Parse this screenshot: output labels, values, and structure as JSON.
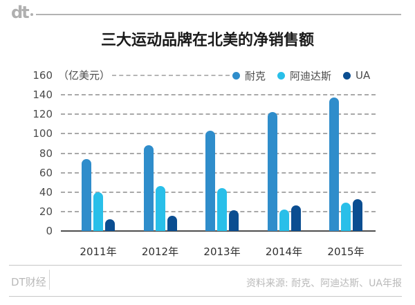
{
  "header": {
    "logo_text": "dt"
  },
  "title": "三大运动品牌在北美的净销售额",
  "chart_data": {
    "type": "bar",
    "title": "三大运动品牌在北美的净销售额",
    "unit_label": "（亿美元）",
    "categories": [
      "2011年",
      "2012年",
      "2013年",
      "2014年",
      "2015年"
    ],
    "series": [
      {
        "name": "耐克",
        "color": "#2F8DCB",
        "values": [
          74,
          88,
          103,
          122,
          137
        ]
      },
      {
        "name": "阿迪达斯",
        "color": "#29BFE9",
        "values": [
          40,
          46,
          44,
          22,
          29
        ]
      },
      {
        "name": "UA",
        "color": "#0B4E91",
        "values": [
          12,
          16,
          21,
          26,
          33
        ]
      }
    ],
    "ylim": [
      0,
      160
    ],
    "ytick_step": 20,
    "grid": "horizontal-dashed",
    "legend_position": "top-right"
  },
  "footer": {
    "brand": "DT财经",
    "source": "资料来源: 耐克、阿迪达斯、UA年报"
  }
}
